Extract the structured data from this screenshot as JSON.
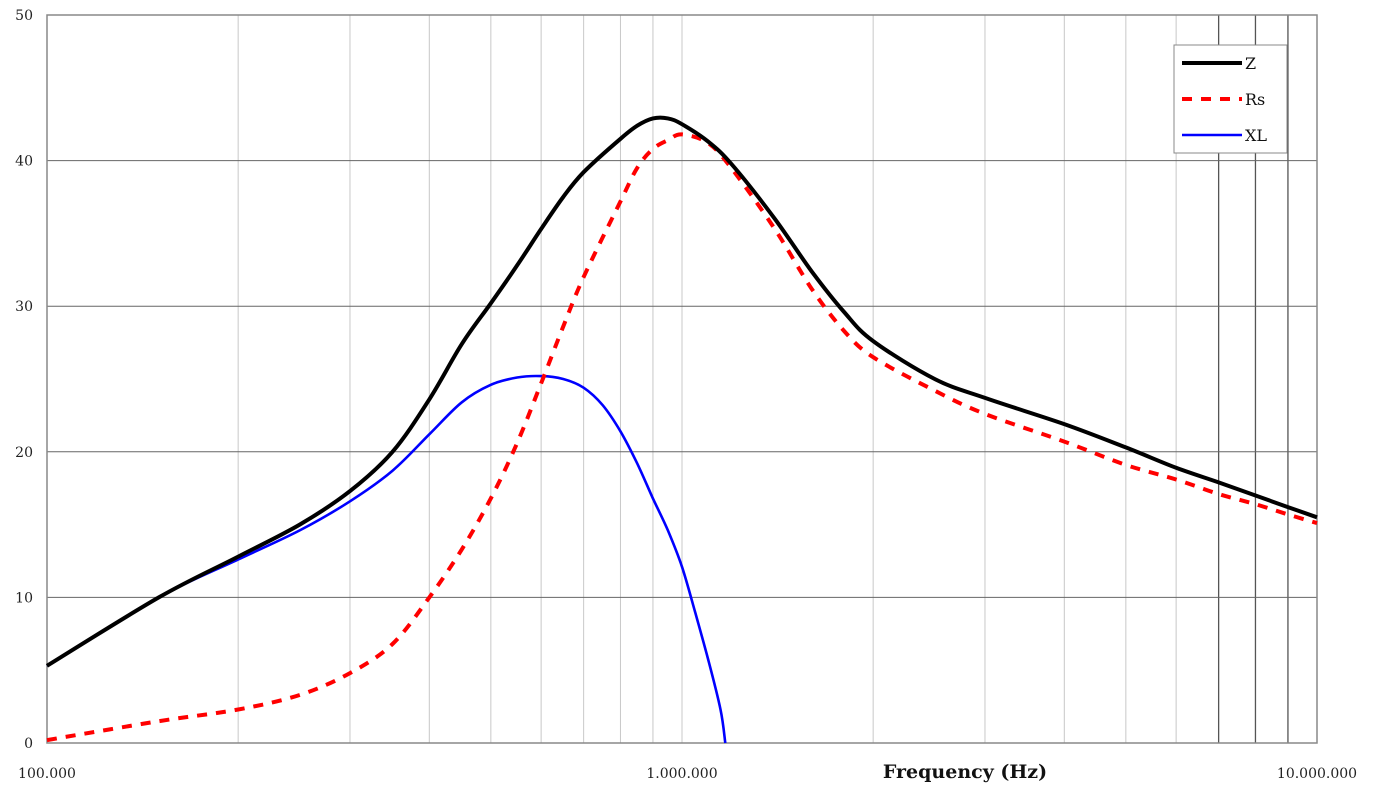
{
  "chart_data": {
    "type": "line",
    "title": "",
    "xlabel": "Frequency (Hz)",
    "ylabel": "",
    "x_scale": "log",
    "xlim": [
      100000,
      10000000
    ],
    "ylim": [
      0,
      50
    ],
    "x_tick_labels": [
      "100.000",
      "1.000.000",
      "10.000.000"
    ],
    "y_ticks": [
      0,
      10,
      20,
      30,
      40,
      50
    ],
    "y_tick_labels": [
      "0",
      "10",
      "20",
      "30",
      "40",
      "50"
    ],
    "grid": true,
    "legend_position": "top-right",
    "series": [
      {
        "name": "Z",
        "color": "#000000",
        "style": "solid",
        "x": [
          100000,
          150000,
          200000,
          250000,
          300000,
          350000,
          400000,
          450000,
          500000,
          550000,
          600000,
          650000,
          700000,
          800000,
          850000,
          900000,
          950000,
          1000000,
          1100000,
          1200000,
          1400000,
          1600000,
          1800000,
          2000000,
          2500000,
          3000000,
          4000000,
          5000000,
          6000000,
          7000000,
          8000000,
          9000000,
          10000000
        ],
        "y": [
          5.3,
          10,
          12.8,
          15,
          17.3,
          20,
          23.6,
          27.4,
          30.2,
          32.8,
          35.3,
          37.5,
          39.2,
          41.5,
          42.4,
          42.9,
          42.9,
          42.5,
          41.3,
          39.7,
          36,
          32.4,
          29.6,
          27.6,
          25,
          23.7,
          21.9,
          20.3,
          18.9,
          17.9,
          17,
          16.2,
          15.5
        ]
      },
      {
        "name": "Rs",
        "color": "#ff0000",
        "style": "dashed",
        "x": [
          100000,
          150000,
          200000,
          250000,
          300000,
          350000,
          400000,
          450000,
          500000,
          550000,
          600000,
          650000,
          700000,
          800000,
          850000,
          900000,
          950000,
          1000000,
          1100000,
          1200000,
          1400000,
          1600000,
          1800000,
          2000000,
          2500000,
          3000000,
          4000000,
          5000000,
          6000000,
          7000000,
          8000000,
          9000000,
          10000000
        ],
        "y": [
          0.2,
          1.5,
          2.3,
          3.3,
          4.8,
          6.8,
          10,
          13.3,
          16.8,
          20.6,
          24.7,
          28.6,
          32,
          37.2,
          39.5,
          40.8,
          41.4,
          41.8,
          41.2,
          39.4,
          35.3,
          31.2,
          28.3,
          26.5,
          24.2,
          22.6,
          20.7,
          19.1,
          18.1,
          17.1,
          16.4,
          15.7,
          15.1
        ]
      },
      {
        "name": "XL",
        "color": "#0000ff",
        "style": "solid",
        "x": [
          100000,
          150000,
          200000,
          250000,
          300000,
          350000,
          400000,
          450000,
          500000,
          550000,
          600000,
          650000,
          700000,
          750000,
          800000,
          850000,
          900000,
          950000,
          1000000,
          1050000,
          1100000,
          1150000,
          1170000
        ],
        "y": [
          5.3,
          10,
          12.6,
          14.6,
          16.6,
          18.7,
          21.2,
          23.4,
          24.6,
          25.1,
          25.2,
          25,
          24.4,
          23.2,
          21.4,
          19.2,
          16.8,
          14.6,
          12.1,
          8.9,
          5.7,
          2.3,
          0
        ]
      }
    ]
  }
}
